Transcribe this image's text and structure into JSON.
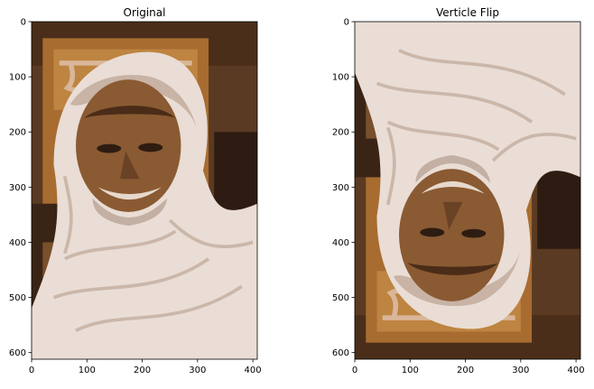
{
  "figure": {
    "background": "#ffffff"
  },
  "palette": {
    "dark_brown": "#2e1c12",
    "mid_brown": "#5a3a22",
    "orange_brown": "#a86c30",
    "tan": "#c88e48",
    "cloth_light": "#e9ddd5",
    "cloth_shadow": "#c8b3a5",
    "skin": "#8a5a32",
    "skin_dark": "#4a2c18",
    "text": "#000000"
  },
  "chart_data": [
    {
      "type": "image",
      "title": "Original",
      "xlim": [
        0,
        408
      ],
      "ylim": [
        612,
        0
      ],
      "xticks": [
        0,
        100,
        200,
        300,
        400
      ],
      "yticks": [
        0,
        100,
        200,
        300,
        400,
        500,
        600
      ],
      "flipped": false
    },
    {
      "type": "image",
      "title": "Verticle Flip",
      "xlim": [
        0,
        408
      ],
      "ylim": [
        612,
        0
      ],
      "xticks": [
        0,
        100,
        200,
        300,
        400
      ],
      "yticks": [
        0,
        100,
        200,
        300,
        400,
        500,
        600
      ],
      "flipped": true
    }
  ]
}
